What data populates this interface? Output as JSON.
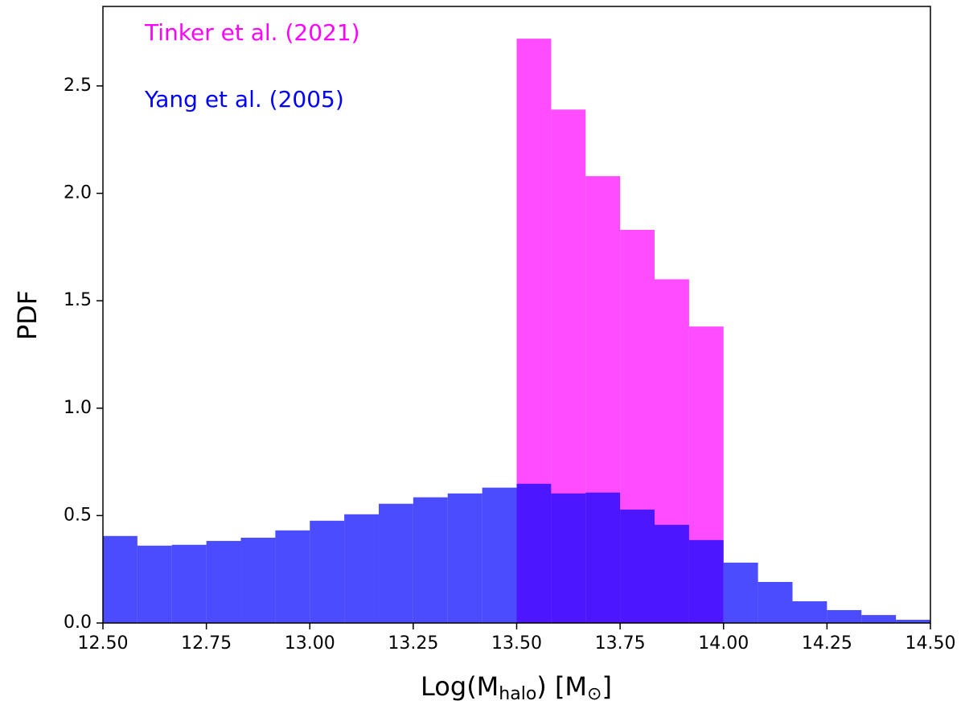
{
  "chart_data": {
    "type": "histogram",
    "xlabel": [
      "Log(M",
      "halo",
      ") [M",
      "⊙",
      "]"
    ],
    "ylabel": "PDF",
    "series": [
      {
        "name": "Tinker et al. (2021)",
        "color": "#ff00ff",
        "bins": [
          13.5,
          13.5833,
          13.6667,
          13.75,
          13.8333,
          13.9167,
          14.0
        ],
        "values": [
          2.72,
          2.39,
          2.08,
          1.83,
          1.6,
          1.38
        ]
      },
      {
        "name": "Yang et al. (2005)",
        "color": "#0000ff",
        "bins": [
          12.5,
          12.5833,
          12.6667,
          12.75,
          12.8333,
          12.9167,
          13.0,
          13.0833,
          13.1667,
          13.25,
          13.3333,
          13.4167,
          13.5,
          13.5833,
          13.6667,
          13.75,
          13.8333,
          13.9167,
          14.0,
          14.0833,
          14.1667,
          14.25,
          14.3333,
          14.4167,
          14.5
        ],
        "values": [
          0.405,
          0.36,
          0.364,
          0.382,
          0.397,
          0.431,
          0.476,
          0.506,
          0.555,
          0.585,
          0.603,
          0.63,
          0.648,
          0.603,
          0.607,
          0.528,
          0.457,
          0.386,
          0.281,
          0.191,
          0.101,
          0.06,
          0.037,
          0.015
        ]
      }
    ],
    "opacity": 0.7,
    "xlim": [
      12.5,
      14.5
    ],
    "ylim": [
      0,
      2.87
    ],
    "xticks": [
      {
        "value": 12.5,
        "label": "12.50"
      },
      {
        "value": 12.75,
        "label": "12.75"
      },
      {
        "value": 13,
        "label": "13.00"
      },
      {
        "value": 13.25,
        "label": "13.25"
      },
      {
        "value": 13.5,
        "label": "13.50"
      },
      {
        "value": 13.75,
        "label": "13.75"
      },
      {
        "value": 14,
        "label": "14.00"
      },
      {
        "value": 14.25,
        "label": "14.25"
      },
      {
        "value": 14.5,
        "label": "14.50"
      }
    ],
    "yticks": [
      {
        "value": 0,
        "label": "0.0"
      },
      0.5,
      {
        "value": 1,
        "label": "1.0"
      },
      1.5,
      {
        "value": 2,
        "label": "2.0"
      },
      2.5
    ]
  }
}
